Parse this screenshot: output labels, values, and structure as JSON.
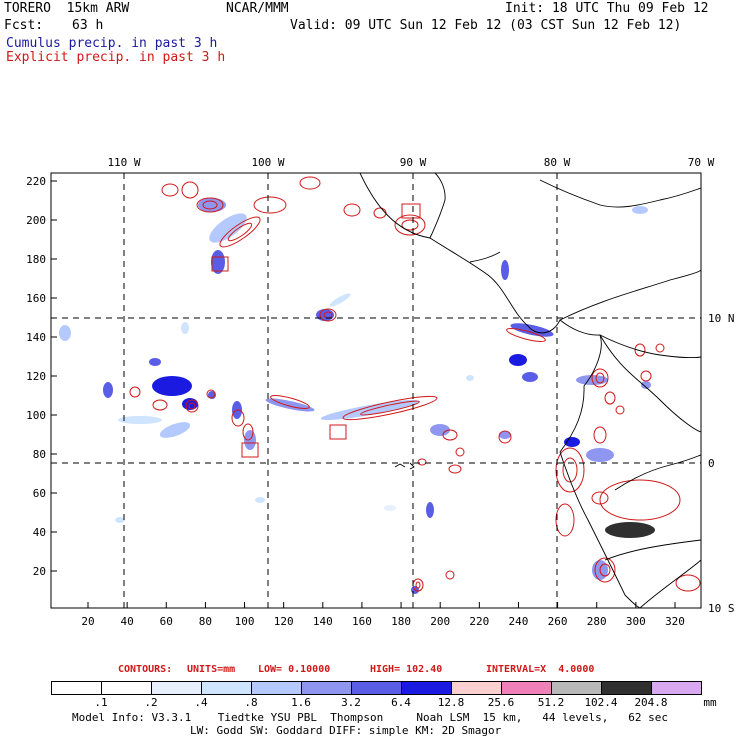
{
  "header": {
    "model": "TORERO  15km ARW",
    "org": "NCAR/MMM",
    "init": "Init: 18 UTC Thu 09 Feb 12",
    "fcst_label": "Fcst:",
    "fcst_value": "63 h",
    "valid": "Valid: 09 UTC Sun 12 Feb 12 (03 CST Sun 12 Feb 12)",
    "legend_cumulus": "Cumulus precip. in past 3 h",
    "legend_explicit": "Explicit precip. in past 3 h"
  },
  "map": {
    "lon_labels": [
      "110 W",
      "100 W",
      "90 W",
      "80 W",
      "70 W"
    ],
    "lat_labels": [
      "10 N",
      "0",
      "10 S"
    ],
    "y_ticks": [
      "220",
      "200",
      "180",
      "160",
      "140",
      "120",
      "100",
      "80",
      "60",
      "40",
      "20"
    ],
    "x_ticks": [
      "20",
      "40",
      "60",
      "80",
      "100",
      "120",
      "140",
      "160",
      "180",
      "200",
      "220",
      "240",
      "260",
      "280",
      "300",
      "320"
    ]
  },
  "contours": {
    "label": "CONTOURS:",
    "units": "UNITS=mm",
    "low": "LOW= 0.10000",
    "high": "HIGH= 102.40",
    "interval": "INTERVAL=X  4.0000",
    "color": "#d01818"
  },
  "colorbar": {
    "labels": [
      ".1",
      ".2",
      ".4",
      ".8",
      "1.6",
      "3.2",
      "6.4",
      "12.8",
      "25.6",
      "51.2",
      "102.4",
      "204.8"
    ],
    "colors": [
      "#ffffff",
      "#ffffff",
      "#e6f0ff",
      "#cfe4ff",
      "#b4caff",
      "#8f96f0",
      "#5a5ee6",
      "#1a1ae0",
      "#fbd0d0",
      "#f080b8",
      "#b8b8b8",
      "#303030",
      "#d8a8f0"
    ],
    "unit": "mm"
  },
  "footer": {
    "line1": "Model Info: V3.3.1    Tiedtke YSU PBL  Thompson     Noah LSM  15 km,   44 levels,   62 sec",
    "line2": "LW: Godd SW: Goddard DIFF: simple KM: 2D Smagor"
  }
}
